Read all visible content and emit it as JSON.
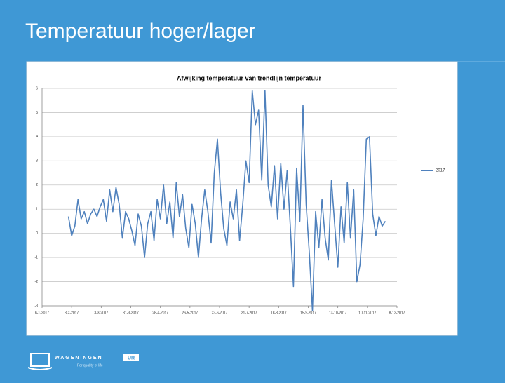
{
  "slide": {
    "title": "Temperatuur hoger/lager",
    "logo": {
      "name": "WAGENINGEN",
      "badge": "UR",
      "tagline": "For quality of life"
    }
  },
  "chart_data": {
    "type": "line",
    "title": "Afwijking temperatuur van trendlijn temperatuur",
    "x": [
      "31-1-2017",
      "3-2-2017",
      "6-2-2017",
      "9-2-2017",
      "12-2-2017",
      "15-2-2017",
      "18-2-2017",
      "21-2-2017",
      "24-2-2017",
      "27-2-2017",
      "2-3-2017",
      "5-3-2017",
      "8-3-2017",
      "11-3-2017",
      "14-3-2017",
      "17-3-2017",
      "20-3-2017",
      "23-3-2017",
      "26-3-2017",
      "29-3-2017",
      "1-4-2017",
      "4-4-2017",
      "7-4-2017",
      "10-4-2017",
      "13-4-2017",
      "16-4-2017",
      "19-4-2017",
      "22-4-2017",
      "25-4-2017",
      "28-4-2017",
      "1-5-2017",
      "4-5-2017",
      "7-5-2017",
      "10-5-2017",
      "13-5-2017",
      "16-5-2017",
      "19-5-2017",
      "22-5-2017",
      "25-5-2017",
      "28-5-2017",
      "31-5-2017",
      "3-6-2017",
      "6-6-2017",
      "9-6-2017",
      "12-6-2017",
      "15-6-2017",
      "18-6-2017",
      "21-6-2017",
      "24-6-2017",
      "27-6-2017",
      "30-6-2017",
      "3-7-2017",
      "6-7-2017",
      "9-7-2017",
      "12-7-2017",
      "15-7-2017",
      "18-7-2017",
      "21-7-2017",
      "24-7-2017",
      "27-7-2017",
      "30-7-2017",
      "2-8-2017",
      "5-8-2017",
      "8-8-2017",
      "11-8-2017",
      "14-8-2017",
      "17-8-2017",
      "20-8-2017",
      "23-8-2017",
      "26-8-2017",
      "29-8-2017",
      "1-9-2017",
      "4-9-2017",
      "7-9-2017",
      "10-9-2017",
      "13-9-2017",
      "16-9-2017",
      "19-9-2017",
      "22-9-2017",
      "25-9-2017",
      "28-9-2017",
      "1-10-2017",
      "4-10-2017",
      "7-10-2017",
      "10-10-2017",
      "13-10-2017",
      "16-10-2017",
      "19-10-2017",
      "22-10-2017",
      "25-10-2017",
      "28-10-2017",
      "31-10-2017",
      "3-11-2017",
      "6-11-2017",
      "9-11-2017",
      "12-11-2017",
      "15-11-2017",
      "18-11-2017",
      "21-11-2017",
      "24-11-2017",
      "27-11-2017"
    ],
    "series": [
      {
        "name": "2017",
        "color": "#4f81bd",
        "values": [
          0.7,
          -0.1,
          0.3,
          1.4,
          0.6,
          0.9,
          0.4,
          0.8,
          1.0,
          0.7,
          1.1,
          1.4,
          0.5,
          1.8,
          0.9,
          1.9,
          1.2,
          -0.2,
          0.9,
          0.6,
          0.1,
          -0.5,
          0.8,
          0.3,
          -1.0,
          0.4,
          0.9,
          -0.3,
          1.4,
          0.6,
          2.0,
          0.4,
          1.3,
          -0.2,
          2.1,
          0.7,
          1.6,
          0.2,
          -0.6,
          1.2,
          0.4,
          -1.0,
          0.6,
          1.8,
          0.9,
          -0.4,
          2.5,
          3.9,
          1.7,
          0.2,
          -0.5,
          1.3,
          0.6,
          1.8,
          -0.3,
          1.2,
          3.0,
          2.1,
          5.9,
          4.5,
          5.1,
          2.2,
          5.9,
          2.0,
          1.1,
          2.8,
          0.6,
          2.9,
          1.0,
          2.6,
          0.3,
          -2.2,
          2.7,
          0.5,
          5.3,
          1.2,
          -0.8,
          -3.2,
          0.9,
          -0.6,
          1.4,
          -0.2,
          -1.1,
          2.2,
          0.4,
          -1.4,
          1.1,
          -0.4,
          2.1,
          -0.2,
          1.8,
          -2.0,
          -1.3,
          0.6,
          3.9,
          4.0,
          0.8,
          -0.1,
          0.7,
          0.3,
          0.5
        ]
      }
    ],
    "xlim": [
      "6-1-2017",
      "8-12-2017"
    ],
    "xticks": [
      "6-1-2017",
      "3-2-2017",
      "3-3-2017",
      "31-3-2017",
      "28-4-2017",
      "26-5-2017",
      "23-6-2017",
      "21-7-2017",
      "18-8-2017",
      "15-9-2017",
      "13-10-2017",
      "10-11-2017",
      "8-12-2017"
    ],
    "ylim": [
      -3,
      6
    ],
    "yticks": [
      -3,
      -2,
      -1,
      0,
      1,
      2,
      3,
      4,
      5,
      6
    ],
    "grid": true,
    "legend": "right"
  }
}
